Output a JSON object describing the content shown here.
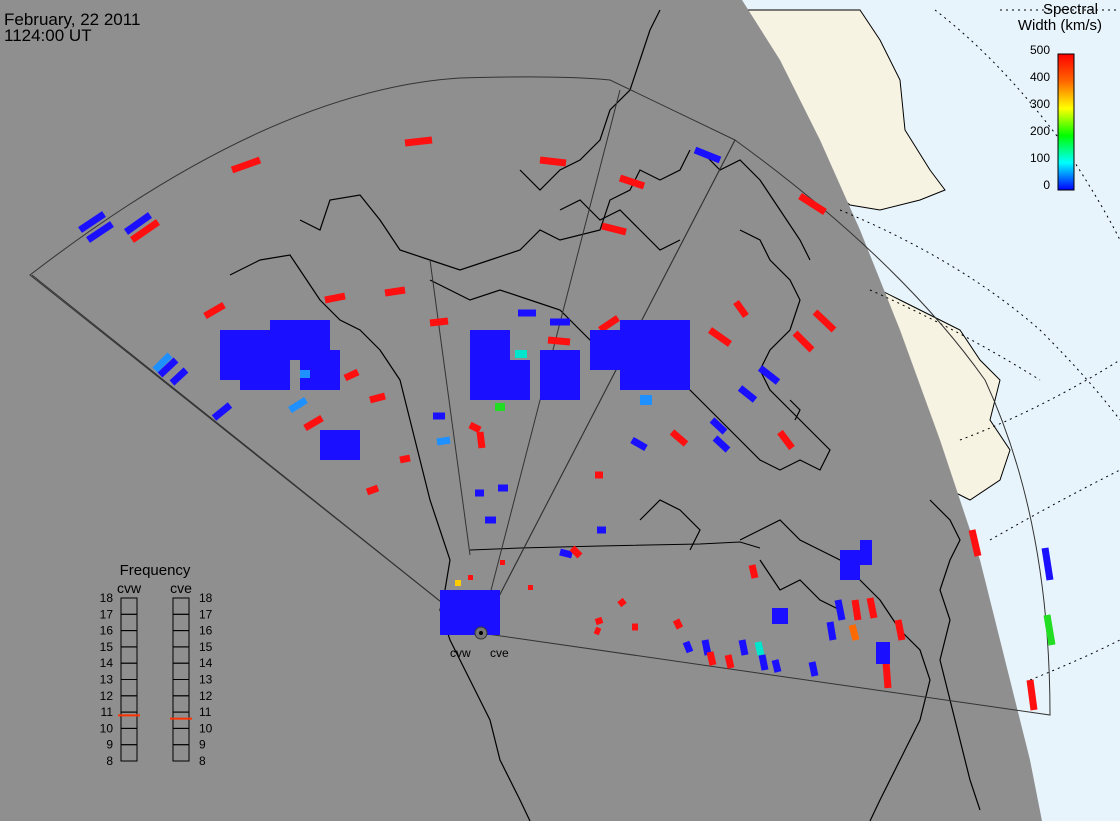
{
  "header": {
    "date": "February, 22 2011",
    "time": "1124:00 UT"
  },
  "colors": {
    "night": "#8f8f8f",
    "day_sea": "#e8f4fc",
    "day_land": "#f7f3e3",
    "coast": "#000000",
    "grid": "#000000"
  },
  "colorbar": {
    "title_line1": "Spectral",
    "title_line2": "Width (km/s)",
    "ticks": [
      "500",
      "400",
      "300",
      "200",
      "100",
      "0"
    ],
    "stops": [
      "#ff0000",
      "#ff6600",
      "#ffff00",
      "#00ff00",
      "#00ffff",
      "#0000ff"
    ]
  },
  "frequency": {
    "title": "Frequency",
    "columns": [
      {
        "name": "cvw",
        "value": 10.8
      },
      {
        "name": "cve",
        "value": 10.6
      }
    ],
    "scale": [
      "18",
      "17",
      "16",
      "15",
      "14",
      "13",
      "12",
      "11",
      "10",
      "9",
      "8"
    ]
  },
  "radars": {
    "site_labels": [
      "cvw",
      "cve"
    ]
  }
}
